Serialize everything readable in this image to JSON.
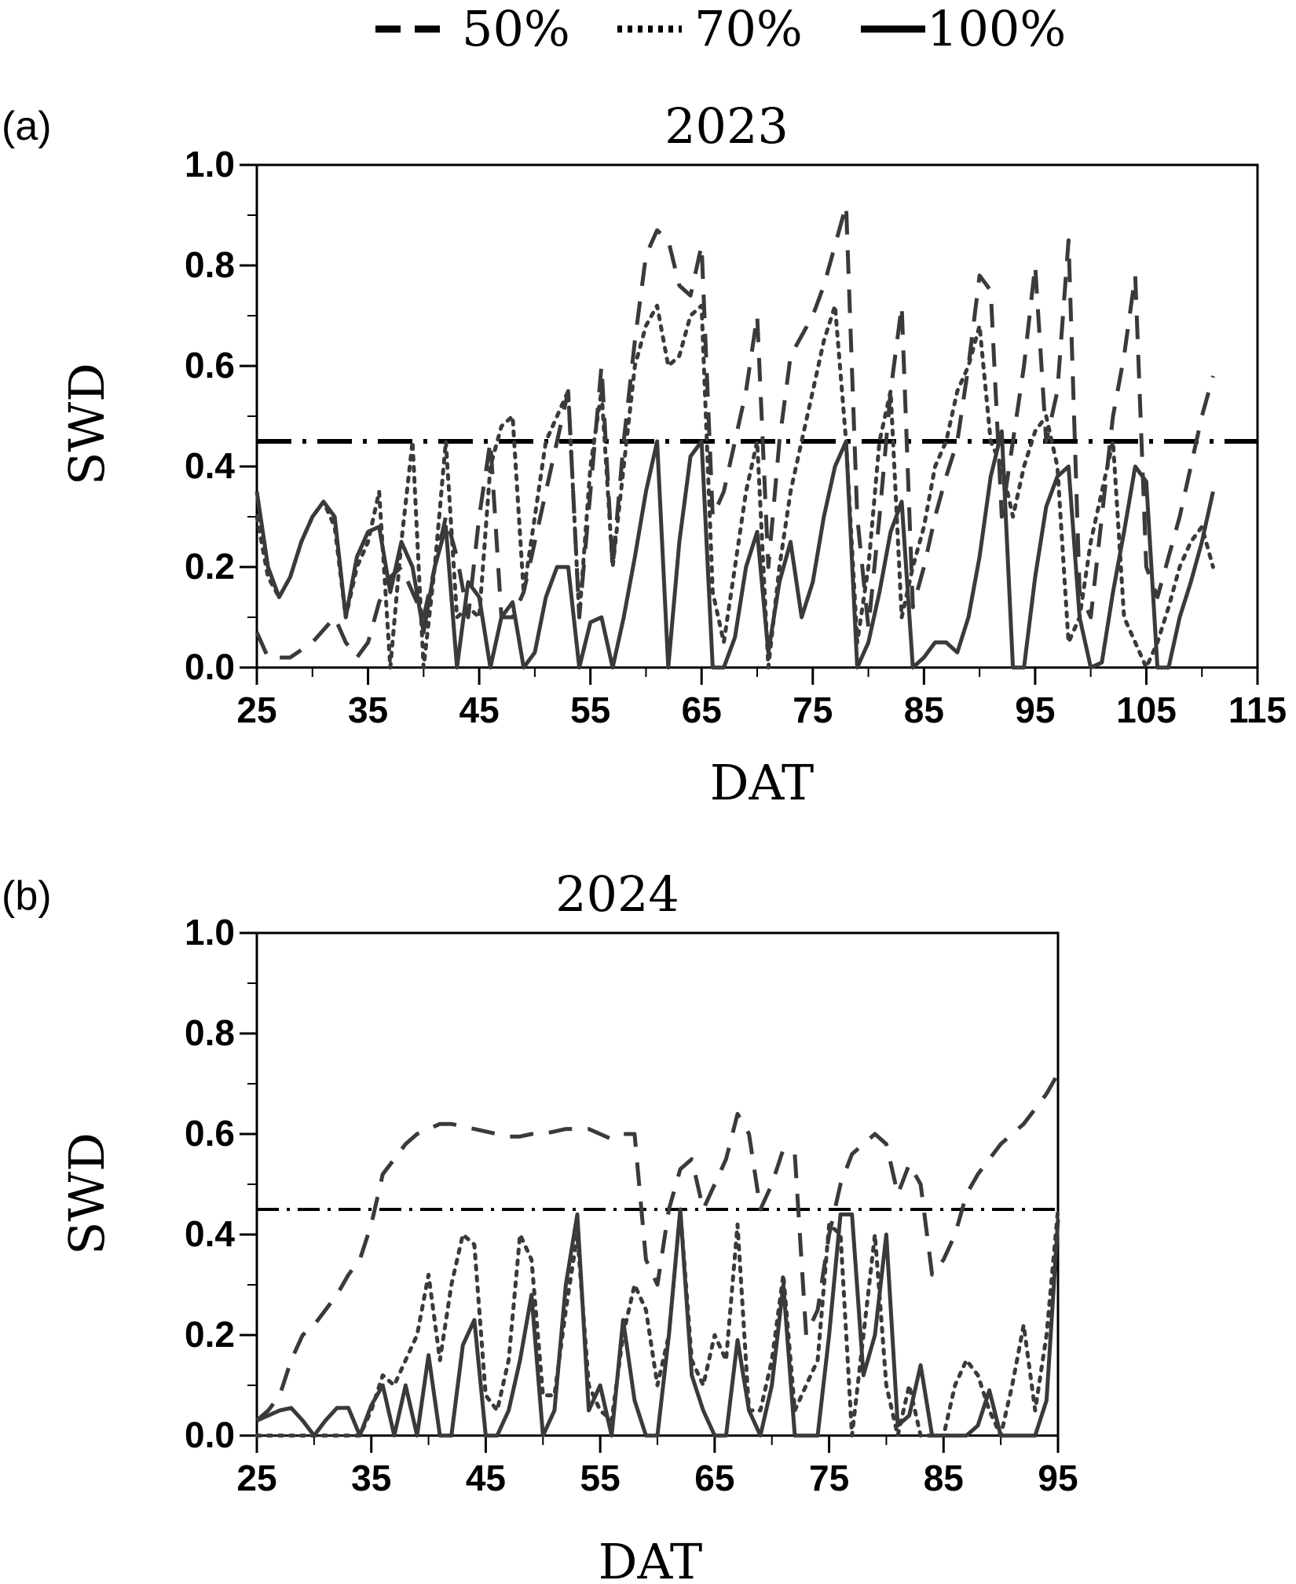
{
  "legend": {
    "items": [
      {
        "label": "50%",
        "style": "dashed"
      },
      {
        "label": "70%",
        "style": "dotted"
      },
      {
        "label": "100%",
        "style": "solid"
      }
    ]
  },
  "line_color": "#3a3a3a",
  "threshold_color": "#000000",
  "chart_data": [
    {
      "panel_label": "(a)",
      "type": "line",
      "title": "2023",
      "xlabel": "DAT",
      "ylabel": "SWD",
      "xlim": [
        25,
        115
      ],
      "ylim": [
        0,
        1
      ],
      "xticks": [
        "25",
        "35",
        "45",
        "55",
        "65",
        "75",
        "85",
        "95",
        "105",
        "115"
      ],
      "yticks": [
        "0.0",
        "0.2",
        "0.4",
        "0.6",
        "0.8",
        "1.0"
      ],
      "threshold": {
        "y": 0.45,
        "style": "dash-dot"
      },
      "series": [
        {
          "name": "50%",
          "style": "dashed",
          "x": [
            25,
            26,
            28,
            30,
            32,
            33,
            34,
            35,
            36,
            37,
            38,
            39,
            40,
            41,
            42,
            43,
            44,
            45,
            46,
            47,
            48,
            49,
            50,
            51,
            52,
            53,
            54,
            55,
            56,
            57,
            58,
            59,
            60,
            61,
            62,
            63,
            64,
            65,
            66,
            67,
            68,
            69,
            70,
            71,
            72,
            73,
            74,
            75,
            76,
            77,
            78,
            79,
            80,
            81,
            82,
            83,
            84,
            85,
            86,
            87,
            88,
            89,
            90,
            91,
            92,
            93,
            94,
            95,
            96,
            97,
            98,
            99,
            100,
            101,
            102,
            103,
            104,
            105,
            106,
            107,
            108,
            109,
            110,
            111
          ],
          "y": [
            0.07,
            0.02,
            0.02,
            0.05,
            0.1,
            0.05,
            0.02,
            0.05,
            0.13,
            0.18,
            0.2,
            0.15,
            0.1,
            0.2,
            0.3,
            0.22,
            0.1,
            0.3,
            0.45,
            0.1,
            0.1,
            0.15,
            0.25,
            0.35,
            0.45,
            0.55,
            0.1,
            0.35,
            0.6,
            0.2,
            0.45,
            0.65,
            0.82,
            0.87,
            0.85,
            0.76,
            0.74,
            0.84,
            0.3,
            0.35,
            0.45,
            0.55,
            0.7,
            0.2,
            0.45,
            0.62,
            0.66,
            0.7,
            0.76,
            0.84,
            0.92,
            0.3,
            0.08,
            0.3,
            0.55,
            0.72,
            0.12,
            0.2,
            0.3,
            0.38,
            0.45,
            0.6,
            0.78,
            0.75,
            0.3,
            0.45,
            0.6,
            0.8,
            0.45,
            0.55,
            0.85,
            0.15,
            0.1,
            0.3,
            0.5,
            0.62,
            0.78,
            0.2,
            0.14,
            0.22,
            0.3,
            0.4,
            0.5,
            0.58
          ]
        },
        {
          "name": "70%",
          "style": "dotted",
          "x": [
            25,
            26,
            27,
            28,
            29,
            30,
            31,
            32,
            33,
            34,
            35,
            36,
            37,
            38,
            39,
            40,
            41,
            42,
            43,
            44,
            45,
            46,
            47,
            48,
            49,
            50,
            51,
            52,
            53,
            54,
            55,
            56,
            57,
            58,
            59,
            60,
            61,
            62,
            63,
            64,
            65,
            66,
            67,
            68,
            69,
            70,
            71,
            72,
            73,
            74,
            75,
            76,
            77,
            78,
            79,
            80,
            81,
            82,
            83,
            84,
            85,
            86,
            87,
            88,
            89,
            90,
            91,
            92,
            93,
            94,
            95,
            96,
            97,
            98,
            99,
            100,
            101,
            102,
            103,
            104,
            105,
            106,
            107,
            108,
            109,
            110,
            111
          ],
          "y": [
            0.3,
            0.18,
            0.14,
            0.18,
            0.25,
            0.3,
            0.33,
            0.28,
            0.1,
            0.2,
            0.25,
            0.35,
            0.0,
            0.25,
            0.45,
            0.0,
            0.2,
            0.45,
            0.1,
            0.12,
            0.1,
            0.4,
            0.48,
            0.5,
            0.15,
            0.3,
            0.45,
            0.5,
            0.55,
            0.1,
            0.4,
            0.55,
            0.2,
            0.4,
            0.6,
            0.68,
            0.72,
            0.6,
            0.62,
            0.7,
            0.72,
            0.15,
            0.05,
            0.2,
            0.35,
            0.45,
            0.0,
            0.2,
            0.35,
            0.45,
            0.55,
            0.65,
            0.72,
            0.45,
            0.05,
            0.2,
            0.45,
            0.55,
            0.1,
            0.2,
            0.28,
            0.4,
            0.45,
            0.55,
            0.6,
            0.68,
            0.45,
            0.4,
            0.3,
            0.4,
            0.47,
            0.5,
            0.4,
            0.05,
            0.1,
            0.25,
            0.35,
            0.45,
            0.1,
            0.05,
            0.0,
            0.05,
            0.12,
            0.2,
            0.25,
            0.28,
            0.2
          ]
        },
        {
          "name": "100%",
          "style": "solid",
          "x": [
            25,
            26,
            27,
            28,
            29,
            30,
            31,
            32,
            33,
            34,
            35,
            36,
            37,
            38,
            39,
            40,
            41,
            42,
            43,
            44,
            45,
            46,
            47,
            48,
            49,
            50,
            51,
            52,
            53,
            54,
            55,
            56,
            57,
            58,
            59,
            60,
            61,
            62,
            63,
            64,
            65,
            66,
            67,
            68,
            69,
            70,
            71,
            72,
            73,
            74,
            75,
            76,
            77,
            78,
            79,
            80,
            81,
            82,
            83,
            84,
            85,
            86,
            87,
            88,
            89,
            90,
            91,
            92,
            93,
            94,
            95,
            96,
            97,
            98,
            99,
            100,
            101,
            102,
            103,
            104,
            105,
            106,
            107,
            108,
            109,
            110,
            111
          ],
          "y": [
            0.35,
            0.2,
            0.14,
            0.18,
            0.25,
            0.3,
            0.33,
            0.3,
            0.1,
            0.22,
            0.27,
            0.28,
            0.15,
            0.25,
            0.2,
            0.07,
            0.2,
            0.28,
            0.0,
            0.17,
            0.14,
            0.0,
            0.1,
            0.13,
            0.0,
            0.03,
            0.14,
            0.2,
            0.2,
            0.0,
            0.09,
            0.1,
            0.0,
            0.1,
            0.22,
            0.35,
            0.45,
            0.0,
            0.25,
            0.42,
            0.45,
            0.0,
            0.0,
            0.06,
            0.2,
            0.27,
            0.03,
            0.17,
            0.25,
            0.1,
            0.17,
            0.3,
            0.4,
            0.45,
            0.0,
            0.05,
            0.15,
            0.27,
            0.33,
            0.0,
            0.02,
            0.05,
            0.05,
            0.03,
            0.1,
            0.22,
            0.38,
            0.47,
            0.0,
            0.0,
            0.18,
            0.32,
            0.38,
            0.4,
            0.1,
            0.0,
            0.01,
            0.15,
            0.27,
            0.4,
            0.37,
            0.0,
            0.0,
            0.1,
            0.17,
            0.25,
            0.35
          ]
        }
      ]
    },
    {
      "panel_label": "(b)",
      "type": "line",
      "title": "2024",
      "xlabel": "DAT",
      "ylabel": "SWD",
      "xlim": [
        25,
        95
      ],
      "ylim": [
        0,
        1
      ],
      "xticks": [
        "25",
        "35",
        "45",
        "55",
        "65",
        "75",
        "85",
        "95"
      ],
      "yticks": [
        "0.0",
        "0.2",
        "0.4",
        "0.6",
        "0.8",
        "1.0"
      ],
      "threshold": {
        "y": 0.45,
        "style": "dash-dot"
      },
      "series": [
        {
          "name": "50%",
          "style": "dashed",
          "x": [
            25,
            26,
            27,
            28,
            29,
            30,
            31,
            32,
            33,
            34,
            35,
            36,
            37,
            38,
            39,
            40,
            41,
            42,
            43,
            44,
            45,
            46,
            47,
            48,
            49,
            50,
            51,
            52,
            53,
            54,
            55,
            56,
            57,
            58,
            59,
            60,
            61,
            62,
            63,
            64,
            65,
            66,
            67,
            68,
            69,
            70,
            71,
            72,
            73,
            74,
            75,
            76,
            77,
            78,
            79,
            80,
            81,
            82,
            83,
            84,
            85,
            86,
            87,
            88,
            89,
            90,
            91,
            92,
            93,
            94,
            95
          ],
          "y": [
            0.03,
            0.05,
            0.08,
            0.15,
            0.2,
            0.22,
            0.25,
            0.28,
            0.32,
            0.35,
            0.42,
            0.52,
            0.55,
            0.58,
            0.6,
            0.61,
            0.62,
            0.62,
            0.615,
            0.61,
            0.605,
            0.6,
            0.595,
            0.595,
            0.6,
            0.6,
            0.605,
            0.61,
            0.61,
            0.61,
            0.6,
            0.59,
            0.6,
            0.6,
            0.35,
            0.3,
            0.45,
            0.53,
            0.55,
            0.45,
            0.5,
            0.55,
            0.64,
            0.6,
            0.45,
            0.5,
            0.57,
            0.56,
            0.2,
            0.25,
            0.4,
            0.5,
            0.56,
            0.58,
            0.6,
            0.58,
            0.48,
            0.54,
            0.5,
            0.32,
            0.35,
            0.4,
            0.48,
            0.52,
            0.55,
            0.58,
            0.6,
            0.62,
            0.65,
            0.68,
            0.72
          ]
        },
        {
          "name": "70%",
          "style": "dotted",
          "x": [
            25,
            28,
            30,
            32,
            34,
            35,
            36,
            37,
            38,
            39,
            40,
            41,
            42,
            43,
            44,
            45,
            46,
            47,
            48,
            49,
            50,
            51,
            52,
            53,
            54,
            55,
            56,
            57,
            58,
            59,
            60,
            61,
            62,
            63,
            64,
            65,
            66,
            67,
            68,
            69,
            70,
            71,
            72,
            73,
            74,
            75,
            76,
            77,
            78,
            79,
            80,
            81,
            82,
            83,
            84,
            85,
            86,
            87,
            88,
            89,
            90,
            91,
            92,
            93,
            94,
            95
          ],
          "y": [
            0.0,
            0.0,
            0.0,
            0.0,
            0.0,
            0.05,
            0.12,
            0.1,
            0.15,
            0.2,
            0.32,
            0.15,
            0.3,
            0.4,
            0.38,
            0.08,
            0.05,
            0.15,
            0.4,
            0.35,
            0.08,
            0.08,
            0.25,
            0.4,
            0.1,
            0.05,
            0.03,
            0.2,
            0.3,
            0.25,
            0.1,
            0.2,
            0.45,
            0.15,
            0.1,
            0.2,
            0.15,
            0.42,
            0.05,
            0.05,
            0.15,
            0.32,
            0.05,
            0.1,
            0.15,
            0.42,
            0.4,
            0.0,
            0.2,
            0.4,
            0.1,
            0.0,
            0.1,
            0.0,
            0.0,
            0.0,
            0.1,
            0.15,
            0.12,
            0.05,
            0.0,
            0.1,
            0.22,
            0.05,
            0.2,
            0.45
          ]
        },
        {
          "name": "100%",
          "style": "solid",
          "x": [
            25,
            26,
            27,
            28,
            29,
            30,
            31,
            32,
            33,
            34,
            35,
            36,
            37,
            38,
            39,
            40,
            41,
            42,
            43,
            44,
            45,
            46,
            47,
            48,
            49,
            50,
            51,
            52,
            53,
            54,
            55,
            56,
            57,
            58,
            59,
            60,
            61,
            62,
            63,
            64,
            65,
            66,
            67,
            68,
            69,
            70,
            71,
            72,
            73,
            74,
            75,
            76,
            77,
            78,
            79,
            80,
            81,
            82,
            83,
            84,
            85,
            86,
            87,
            88,
            89,
            90,
            91,
            92,
            93,
            94,
            95
          ],
          "y": [
            0.03,
            0.04,
            0.05,
            0.055,
            0.03,
            0.0,
            0.03,
            0.055,
            0.055,
            0.0,
            0.06,
            0.1,
            0.0,
            0.1,
            0.0,
            0.16,
            0.0,
            0.0,
            0.18,
            0.23,
            0.0,
            0.0,
            0.05,
            0.15,
            0.28,
            0.0,
            0.05,
            0.3,
            0.44,
            0.05,
            0.1,
            0.0,
            0.23,
            0.07,
            0.0,
            0.0,
            0.2,
            0.45,
            0.12,
            0.05,
            0.0,
            0.0,
            0.19,
            0.05,
            0.0,
            0.1,
            0.3,
            0.0,
            0.0,
            0.0,
            0.2,
            0.44,
            0.44,
            0.12,
            0.2,
            0.4,
            0.02,
            0.04,
            0.14,
            0.0,
            0.0,
            0.0,
            0.0,
            0.02,
            0.09,
            0.0,
            0.0,
            0.0,
            0.0,
            0.07,
            0.43
          ]
        }
      ]
    }
  ]
}
